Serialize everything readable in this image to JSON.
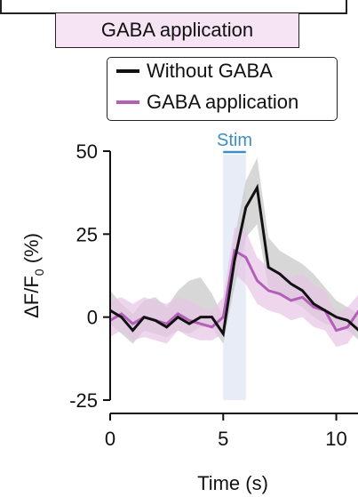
{
  "condition_label": "GABA application",
  "colors": {
    "without": "#111111",
    "with": "#b35fb8",
    "without_band": "#c9c9c9",
    "with_band": "#e7c6e5",
    "stim": "#3d8fc2",
    "stim_band": "#e8ecf6",
    "condition_bg": "#f6e3f3"
  },
  "chart_data": {
    "type": "line",
    "xlabel": "Time (s)",
    "ylabel": "ΔF/F",
    "ylabel_sub": "0",
    "ylabel_unit": " (%)",
    "xlim": [
      0,
      11
    ],
    "ylim": [
      -25,
      50
    ],
    "xticks": [
      0,
      5,
      10
    ],
    "yticks": [
      -25,
      0,
      25,
      50
    ],
    "stim": {
      "label": "Stim",
      "start": 5,
      "end": 6
    },
    "legend": [
      "Without GABA",
      "GABA application"
    ],
    "series": [
      {
        "name": "Without GABA",
        "x": [
          0,
          0.5,
          1,
          1.5,
          2,
          2.5,
          3,
          3.5,
          4,
          4.5,
          5,
          5.5,
          6,
          6.5,
          7,
          7.5,
          8,
          8.5,
          9,
          9.5,
          10,
          10.5,
          11
        ],
        "y": [
          2,
          0,
          -4,
          0,
          -1,
          -3,
          0,
          -2,
          0,
          0,
          -5,
          17,
          33,
          39,
          15,
          13,
          10,
          8,
          4,
          2,
          0,
          -1,
          -4
        ],
        "lower": [
          -2,
          -5,
          -8,
          -4,
          -5,
          -6,
          -4,
          -5,
          -3,
          -3,
          -8,
          9,
          24,
          28,
          9,
          7,
          5,
          3,
          0,
          -2,
          -3,
          -4,
          -7
        ],
        "upper": [
          8,
          4,
          1,
          5,
          6,
          3,
          8,
          11,
          12,
          7,
          0,
          24,
          41,
          48,
          24,
          20,
          18,
          16,
          13,
          9,
          5,
          3,
          1
        ]
      },
      {
        "name": "GABA application",
        "x": [
          0,
          0.5,
          1,
          1.5,
          2,
          2.5,
          3,
          3.5,
          4,
          4.5,
          5,
          5.5,
          6,
          6.5,
          7,
          7.5,
          8,
          8.5,
          9,
          9.5,
          10,
          10.5,
          11
        ],
        "y": [
          -1,
          1,
          -2,
          0,
          -1,
          -2,
          1,
          -1,
          -2,
          -3,
          0,
          20,
          18,
          11,
          8,
          7,
          5,
          6,
          3,
          2,
          -4,
          -3,
          2
        ],
        "lower": [
          -6,
          -4,
          -7,
          -6,
          -7,
          -8,
          -4,
          -6,
          -7,
          -7,
          -5,
          13,
          10,
          4,
          2,
          1,
          -1,
          0,
          -3,
          -4,
          -9,
          -8,
          -3
        ],
        "upper": [
          5,
          6,
          4,
          6,
          5,
          4,
          6,
          5,
          3,
          2,
          6,
          27,
          26,
          18,
          15,
          14,
          12,
          13,
          10,
          8,
          1,
          3,
          7
        ]
      }
    ]
  }
}
